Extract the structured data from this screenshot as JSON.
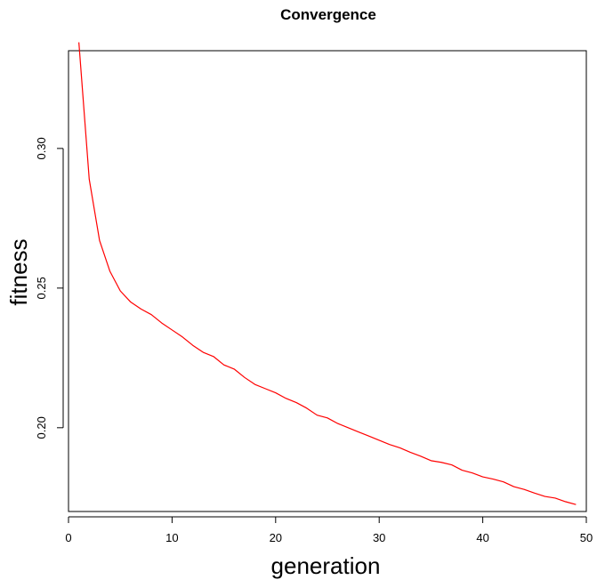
{
  "chart_data": {
    "type": "line",
    "title": "Convergence",
    "xlabel": "generation",
    "ylabel": "fitness",
    "xlim": [
      0,
      50
    ],
    "ylim": [
      0.17,
      0.335
    ],
    "xticks": [
      0,
      10,
      20,
      30,
      40,
      50
    ],
    "yticks": [
      0.2,
      0.25,
      0.3
    ],
    "ytick_labels": [
      "0.20",
      "0.25",
      "0.30"
    ],
    "grid": false,
    "series": [
      {
        "color": "#ff0000",
        "x": [
          1,
          2,
          3,
          4,
          5,
          6,
          7,
          8,
          9,
          10,
          11,
          12,
          13,
          14,
          15,
          16,
          17,
          18,
          19,
          20,
          21,
          22,
          23,
          24,
          25,
          26,
          27,
          28,
          29,
          30,
          31,
          32,
          33,
          34,
          35,
          36,
          37,
          38,
          39,
          40,
          41,
          42,
          43,
          44,
          45,
          46,
          47,
          48,
          49
        ],
        "y": [
          0.338,
          0.289,
          0.267,
          0.256,
          0.249,
          0.245,
          0.2425,
          0.2405,
          0.2375,
          0.235,
          0.2325,
          0.2295,
          0.227,
          0.2255,
          0.2225,
          0.221,
          0.218,
          0.2155,
          0.214,
          0.2125,
          0.2105,
          0.209,
          0.207,
          0.2045,
          0.2035,
          0.2015,
          0.2,
          0.1985,
          0.197,
          0.1955,
          0.194,
          0.1928,
          0.1912,
          0.1898,
          0.1882,
          0.1876,
          0.1867,
          0.1848,
          0.1838,
          0.1824,
          0.1816,
          0.1806,
          0.1789,
          0.1779,
          0.1766,
          0.1754,
          0.1748,
          0.1735,
          0.1725
        ]
      }
    ]
  }
}
